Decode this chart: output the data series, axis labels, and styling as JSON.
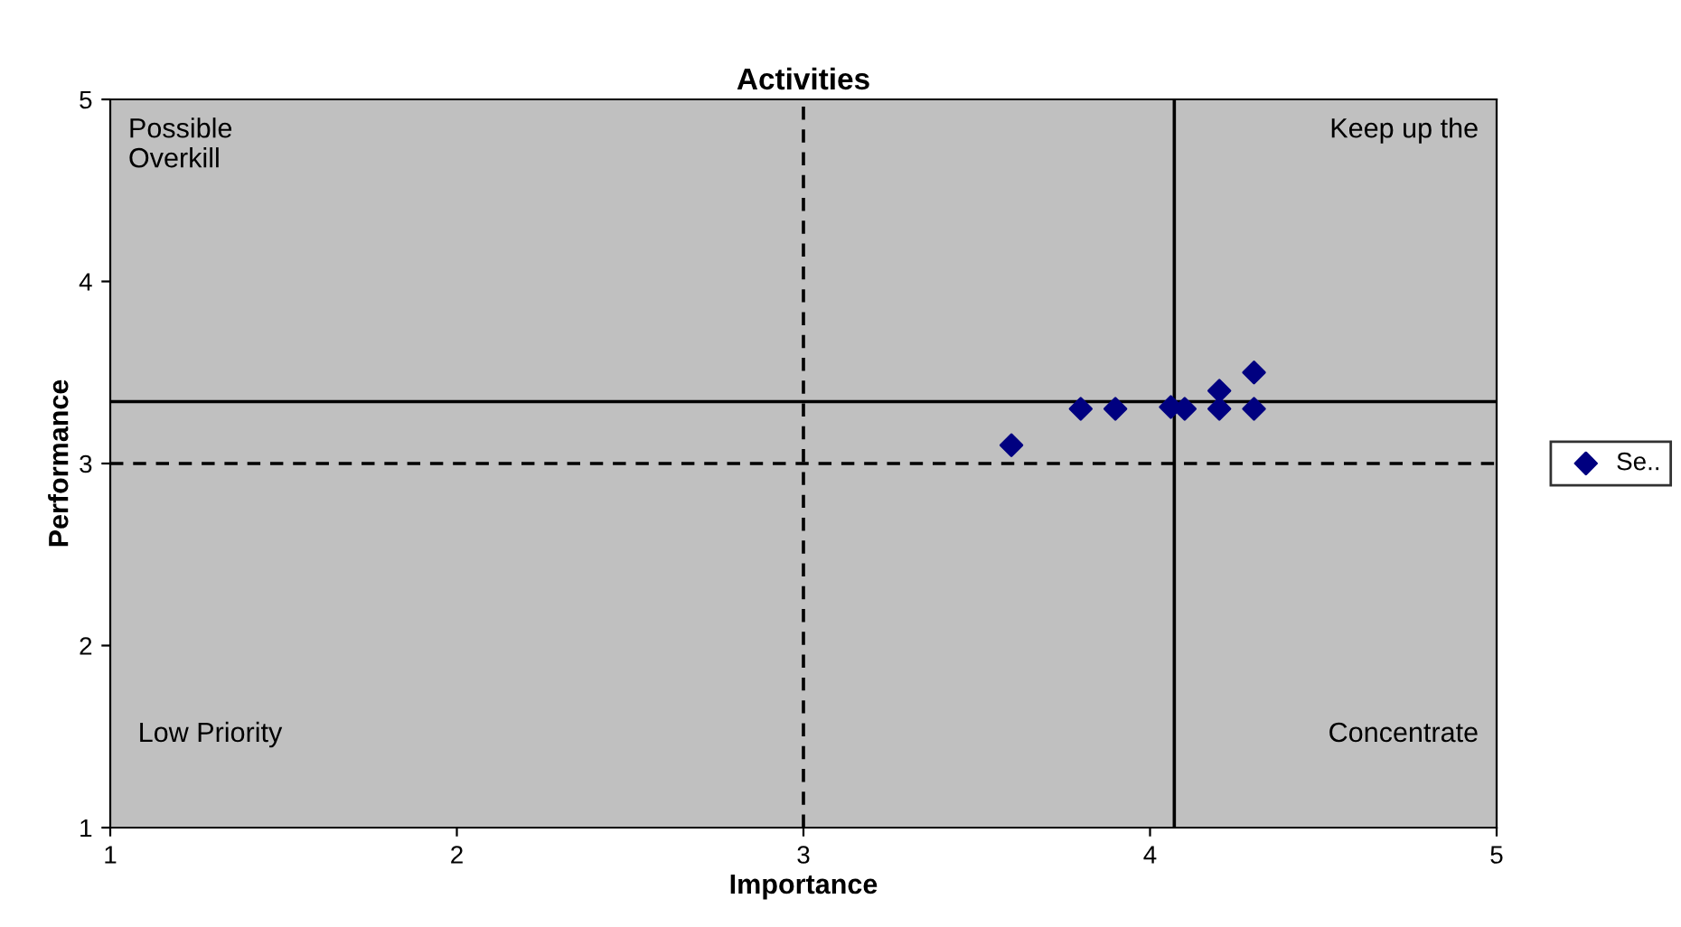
{
  "chart_data": {
    "type": "scatter",
    "title": "Activities",
    "xlabel": "Importance",
    "ylabel": "Performance",
    "xlim": [
      1,
      5
    ],
    "ylim": [
      1,
      5
    ],
    "xticks": [
      1,
      2,
      3,
      4,
      5
    ],
    "yticks": [
      1,
      2,
      3,
      4,
      5
    ],
    "series": [
      {
        "name": "Se..",
        "color": "#000080",
        "x": [
          3.6,
          3.8,
          3.9,
          4.06,
          4.1,
          4.2,
          4.2,
          4.3,
          4.3
        ],
        "values": [
          3.1,
          3.3,
          3.3,
          3.31,
          3.3,
          3.4,
          3.3,
          3.5,
          3.3
        ]
      }
    ],
    "marker": "diamond",
    "grid": false,
    "legend": "right",
    "ref_lines": [
      {
        "axis": "x",
        "value": 3,
        "line_style": "dashed",
        "color": "#000000"
      },
      {
        "axis": "y",
        "value": 3,
        "line_style": "dashed",
        "color": "#000000"
      },
      {
        "axis": "x",
        "value": 4.07,
        "line_style": "solid",
        "color": "#000000"
      },
      {
        "axis": "y",
        "value": 3.34,
        "line_style": "solid",
        "color": "#000000"
      }
    ],
    "annotations": [
      "Possible\nOverkill",
      "Keep up the",
      "Low Priority",
      "Concentrate"
    ]
  }
}
